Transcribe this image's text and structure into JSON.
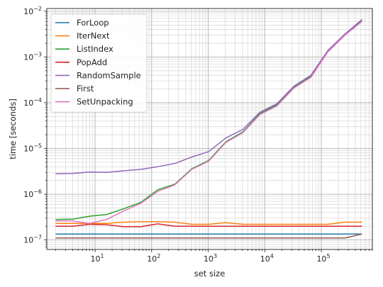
{
  "chart_data": {
    "type": "line",
    "title": "",
    "xlabel": "set size",
    "ylabel": "time [seconds]",
    "xscale": "log",
    "yscale": "log",
    "xlim": [
      1.4,
      800000
    ],
    "ylim": [
      6.2e-08,
      0.0115
    ],
    "grid": "major and minor",
    "legend_position": "top-left",
    "x_tick_labels": [
      {
        "value": 10,
        "base": "10",
        "exp": "1"
      },
      {
        "value": 100,
        "base": "10",
        "exp": "2"
      },
      {
        "value": 1000,
        "base": "10",
        "exp": "3"
      },
      {
        "value": 10000,
        "base": "10",
        "exp": "4"
      },
      {
        "value": 100000,
        "base": "10",
        "exp": "5"
      }
    ],
    "y_tick_labels": [
      {
        "value": 1e-07,
        "base": "10",
        "exp": "−7"
      },
      {
        "value": 1e-06,
        "base": "10",
        "exp": "−6"
      },
      {
        "value": 1e-05,
        "base": "10",
        "exp": "−5"
      },
      {
        "value": 0.0001,
        "base": "10",
        "exp": "−4"
      },
      {
        "value": 0.001,
        "base": "10",
        "exp": "−3"
      },
      {
        "value": 0.01,
        "base": "10",
        "exp": "−2"
      }
    ],
    "x": [
      2,
      4,
      8,
      16,
      32,
      64,
      128,
      256,
      512,
      1024,
      2048,
      4096,
      8192,
      16384,
      32768,
      65536,
      131072,
      262144,
      524288
    ],
    "series": [
      {
        "name": "ForLoop",
        "color": "#1f77b4",
        "values": [
          1.35e-07,
          1.35e-07,
          1.35e-07,
          1.35e-07,
          1.35e-07,
          1.35e-07,
          1.35e-07,
          1.35e-07,
          1.35e-07,
          1.35e-07,
          1.35e-07,
          1.35e-07,
          1.35e-07,
          1.35e-07,
          1.35e-07,
          1.35e-07,
          1.35e-07,
          1.35e-07,
          1.35e-07
        ]
      },
      {
        "name": "IterNext",
        "color": "#ff7f0e",
        "values": [
          2.3e-07,
          2.3e-07,
          2.3e-07,
          2.3e-07,
          2.45e-07,
          2.5e-07,
          2.5e-07,
          2.45e-07,
          2.2e-07,
          2.2e-07,
          2.4e-07,
          2.2e-07,
          2.2e-07,
          2.2e-07,
          2.2e-07,
          2.2e-07,
          2.2e-07,
          2.45e-07,
          2.45e-07
        ]
      },
      {
        "name": "ListIndex",
        "color": "#2ca02c",
        "values": [
          2.8e-07,
          2.85e-07,
          3.3e-07,
          3.6e-07,
          4.8e-07,
          6.6e-07,
          1.25e-06,
          1.65e-06,
          3.6e-06,
          5.5e-06,
          1.4e-05,
          2.3e-05,
          5.8e-05,
          9e-05,
          0.00022,
          0.00038,
          0.00135,
          0.0031,
          0.0063
        ]
      },
      {
        "name": "PopAdd",
        "color": "#d62728",
        "values": [
          2e-07,
          2e-07,
          2.2e-07,
          2.15e-07,
          1.95e-07,
          1.95e-07,
          2.25e-07,
          2e-07,
          2e-07,
          2e-07,
          2e-07,
          2e-07,
          2e-07,
          2e-07,
          2e-07,
          2e-07,
          2e-07,
          2e-07,
          2e-07
        ]
      },
      {
        "name": "RandomSample",
        "color": "#9467bd",
        "values": [
          2.8e-06,
          2.85e-06,
          3.05e-06,
          3e-06,
          3.25e-06,
          3.5e-06,
          4e-06,
          4.7e-06,
          6.5e-06,
          8.6e-06,
          1.7e-05,
          2.6e-05,
          6.2e-05,
          9.5e-05,
          0.00023,
          0.0004,
          0.0014,
          0.0032,
          0.0066
        ]
      },
      {
        "name": "First",
        "color": "#8c564b",
        "values": [
          1.1e-07,
          1.1e-07,
          1.1e-07,
          1.1e-07,
          1.1e-07,
          1.1e-07,
          1.1e-07,
          1.1e-07,
          1.1e-07,
          1.1e-07,
          1.1e-07,
          1.1e-07,
          1.1e-07,
          1.1e-07,
          1.1e-07,
          1.1e-07,
          1.1e-07,
          1.1e-07,
          1.35e-07
        ]
      },
      {
        "name": "SetUnpacking",
        "color": "#e377c2",
        "values": [
          2.6e-07,
          2.6e-07,
          2.3e-07,
          2.8e-07,
          4.3e-07,
          6.3e-07,
          1.15e-06,
          1.6e-06,
          3.5e-06,
          5.3e-06,
          1.35e-05,
          2.2e-05,
          5.5e-05,
          8.5e-05,
          0.00021,
          0.00036,
          0.0013,
          0.003,
          0.006
        ]
      }
    ]
  }
}
